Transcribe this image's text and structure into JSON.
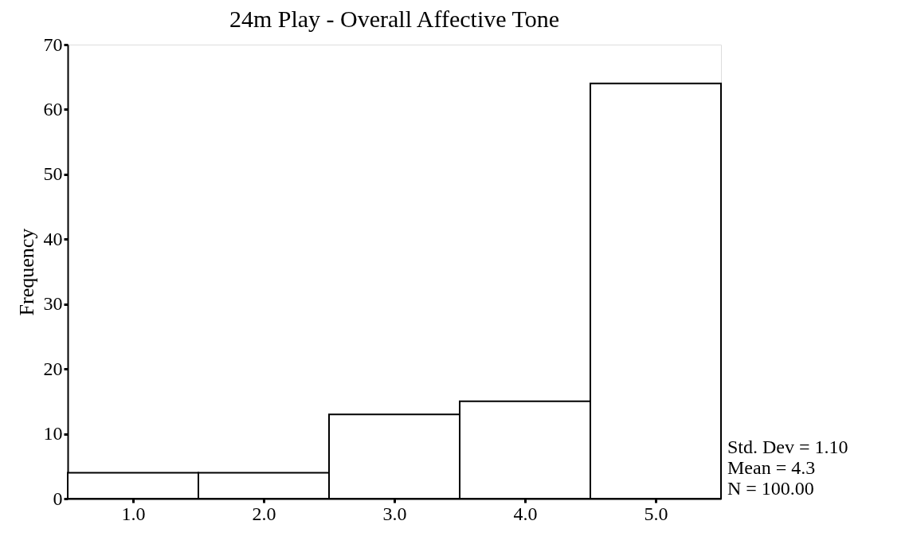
{
  "chart_data": {
    "type": "histogram",
    "title": "24m Play - Overall Affective Tone",
    "ylabel": "Frequency",
    "bins": [
      0.5,
      1.5,
      2.5,
      3.5,
      4.5,
      5.5
    ],
    "values": [
      4,
      4,
      13,
      15,
      64
    ],
    "color": "#ffffff",
    "xlim": [
      0.5,
      5.5
    ],
    "xticks": [
      {
        "value": 1,
        "label": "1.0"
      },
      {
        "value": 2,
        "label": "2.0"
      },
      {
        "value": 3,
        "label": "3.0"
      },
      {
        "value": 4,
        "label": "4.0"
      },
      {
        "value": 5,
        "label": "5.0"
      }
    ],
    "ylim": [
      0,
      70
    ],
    "yticks": [
      0,
      10,
      20,
      30,
      40,
      50,
      60,
      70
    ],
    "grid": false,
    "annotations": [
      "Std. Dev = 1.10",
      "Mean = 4.3",
      "N = 100.00"
    ]
  }
}
